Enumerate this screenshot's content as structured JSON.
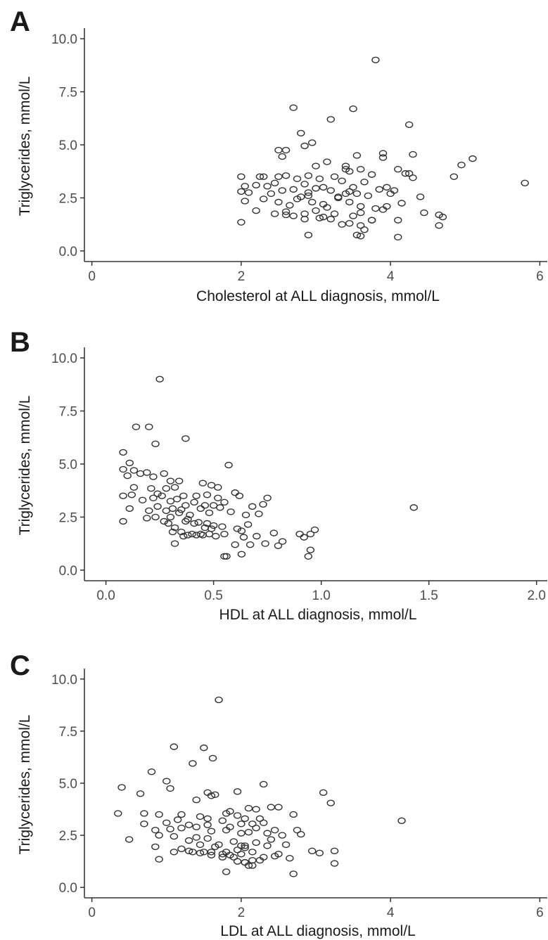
{
  "chart_data": [
    {
      "panel": "A",
      "type": "scatter",
      "xlabel": "Cholesterol at ALL diagnosis, mmol/L",
      "ylabel": "Triglycerides, mmol/L",
      "xlim": [
        -0.1,
        6.1
      ],
      "ylim": [
        -0.5,
        10.5
      ],
      "xticks": [
        0,
        2,
        4,
        6
      ],
      "xtick_labels": [
        "0",
        "2",
        "4",
        "6"
      ],
      "yticks": [
        0,
        2.5,
        5,
        7.5,
        10
      ],
      "ytick_labels": [
        "0.0",
        "2.5",
        "5.0",
        "7.5",
        "10.0"
      ],
      "grid": false,
      "marker": "open-circle",
      "x": [
        3.8,
        2.7,
        3.5,
        3.2,
        4.25,
        2.8,
        2.95,
        2.85,
        2.55,
        2.6,
        3.55,
        3.9,
        4.3,
        3.0,
        3.15,
        3.4,
        3.6,
        3.9,
        4.1,
        4.25,
        4.3,
        3.45,
        5.1,
        5.8,
        2.5,
        2.9,
        4.95,
        4.85,
        2.0,
        2.05,
        2.25,
        2.3,
        2.0,
        2.2,
        2.35,
        2.45,
        2.6,
        2.75,
        2.85,
        3.05,
        3.25,
        3.35,
        3.5,
        3.65,
        3.75,
        3.95,
        4.05,
        4.2,
        2.1,
        2.4,
        2.55,
        2.7,
        2.8,
        2.9,
        3.1,
        3.2,
        3.3,
        3.4,
        3.45,
        3.55,
        3.7,
        3.85,
        4.0,
        2.05,
        2.3,
        2.5,
        2.65,
        2.75,
        2.95,
        3.1,
        3.3,
        3.45,
        3.6,
        3.8,
        3.95,
        4.15,
        4.4,
        2.2,
        2.45,
        2.6,
        2.85,
        3.0,
        3.15,
        3.25,
        3.5,
        3.6,
        3.75,
        3.9,
        4.45,
        4.65,
        4.7,
        2.0,
        2.6,
        2.7,
        2.85,
        3.05,
        3.2,
        3.45,
        3.6,
        3.75,
        4.1,
        4.65,
        3.1,
        3.35,
        3.55,
        3.65,
        2.9,
        3.6,
        4.1,
        3.0,
        3.4,
        2.5,
        2.9
      ],
      "y": [
        9.0,
        6.75,
        6.7,
        6.2,
        5.95,
        5.55,
        5.1,
        4.95,
        4.45,
        4.75,
        4.5,
        4.6,
        4.55,
        4.0,
        4.2,
        4.0,
        3.85,
        4.4,
        3.85,
        3.65,
        3.45,
        3.75,
        4.35,
        3.2,
        3.5,
        3.55,
        4.05,
        3.5,
        3.5,
        3.05,
        3.5,
        3.5,
        2.8,
        3.1,
        3.05,
        3.2,
        3.55,
        3.4,
        3.15,
        3.4,
        3.5,
        3.3,
        3.0,
        3.25,
        3.6,
        3.0,
        2.85,
        3.65,
        2.75,
        2.7,
        2.85,
        2.9,
        2.55,
        2.6,
        3.0,
        2.85,
        2.55,
        2.7,
        2.8,
        2.7,
        2.6,
        2.9,
        2.7,
        2.35,
        2.45,
        2.3,
        2.15,
        2.45,
        2.3,
        2.2,
        2.5,
        2.3,
        2.1,
        2.0,
        2.1,
        2.25,
        2.55,
        1.9,
        1.75,
        1.85,
        1.75,
        1.9,
        2.05,
        1.75,
        1.65,
        1.8,
        1.45,
        1.95,
        1.8,
        1.7,
        1.6,
        1.35,
        1.7,
        1.65,
        1.5,
        1.55,
        1.5,
        1.3,
        1.2,
        1.45,
        1.45,
        1.2,
        1.6,
        1.25,
        0.75,
        1.0,
        0.75,
        0.7,
        0.65,
        2.95,
        3.85,
        4.75,
        2.75
      ],
      "x_axis_line_from": 0
    },
    {
      "panel": "B",
      "type": "scatter",
      "xlabel": "HDL at ALL diagnosis, mmol/L",
      "ylabel": "Triglycerides, mmol/L",
      "xlim": [
        -0.1,
        2.05
      ],
      "ylim": [
        -0.5,
        10.5
      ],
      "xticks": [
        0,
        0.5,
        1,
        1.5,
        2
      ],
      "xtick_labels": [
        "0.0",
        "0.5",
        "1.0",
        "1.5",
        "2.0"
      ],
      "yticks": [
        0,
        2.5,
        5,
        7.5,
        10
      ],
      "ytick_labels": [
        "0.0",
        "2.5",
        "5.0",
        "7.5",
        "10.0"
      ],
      "grid": false,
      "marker": "open-circle",
      "x": [
        0.25,
        0.14,
        0.2,
        0.37,
        0.23,
        0.08,
        0.57,
        0.11,
        0.08,
        0.16,
        0.13,
        0.1,
        0.19,
        0.27,
        0.22,
        0.3,
        0.34,
        0.45,
        0.49,
        0.52,
        0.13,
        0.21,
        0.24,
        0.28,
        0.32,
        0.36,
        0.42,
        0.47,
        0.52,
        0.6,
        0.75,
        1.43,
        0.08,
        0.12,
        0.17,
        0.22,
        0.26,
        0.3,
        0.33,
        0.37,
        0.41,
        0.46,
        0.5,
        0.55,
        0.62,
        0.68,
        0.73,
        0.2,
        0.24,
        0.28,
        0.31,
        0.35,
        0.39,
        0.44,
        0.48,
        0.53,
        0.58,
        0.65,
        0.71,
        0.3,
        0.34,
        0.38,
        0.43,
        0.47,
        0.5,
        0.08,
        0.11,
        0.19,
        0.23,
        0.27,
        0.32,
        0.37,
        0.41,
        0.46,
        0.54,
        0.66,
        0.29,
        0.35,
        0.44,
        0.49,
        0.55,
        0.63,
        0.31,
        0.36,
        0.4,
        0.45,
        0.51,
        0.61,
        0.38,
        0.42,
        0.48,
        0.64,
        0.7,
        0.78,
        0.9,
        0.95,
        0.97,
        0.67,
        0.74,
        0.8,
        0.82,
        0.32,
        0.6,
        0.56,
        0.63,
        0.55,
        0.95,
        0.94,
        0.92
      ],
      "y": [
        9.0,
        6.75,
        6.75,
        6.2,
        5.95,
        5.55,
        4.95,
        5.05,
        4.75,
        4.55,
        4.7,
        4.45,
        4.6,
        4.55,
        4.4,
        4.2,
        4.2,
        4.1,
        4.0,
        3.9,
        3.9,
        3.85,
        3.6,
        3.85,
        3.9,
        3.5,
        3.5,
        3.55,
        3.4,
        3.65,
        3.4,
        2.95,
        3.5,
        3.55,
        3.3,
        3.4,
        3.5,
        3.25,
        3.35,
        3.05,
        3.2,
        3.05,
        3.05,
        3.2,
        3.5,
        3.0,
        3.1,
        2.8,
        3.0,
        2.8,
        2.9,
        2.85,
        2.6,
        2.9,
        2.7,
        2.95,
        2.75,
        2.6,
        2.65,
        2.5,
        2.7,
        2.4,
        2.25,
        2.2,
        2.1,
        2.3,
        2.9,
        2.45,
        2.5,
        2.3,
        2.0,
        2.3,
        2.2,
        2.0,
        2.05,
        2.15,
        2.2,
        1.8,
        1.7,
        1.95,
        1.7,
        1.85,
        1.8,
        1.6,
        1.7,
        1.65,
        1.6,
        1.95,
        1.65,
        1.65,
        1.7,
        1.55,
        1.6,
        1.75,
        1.7,
        1.7,
        1.9,
        1.2,
        1.25,
        1.15,
        1.35,
        1.25,
        1.2,
        0.65,
        0.75,
        0.65,
        0.95,
        0.65,
        1.55
      ],
      "x_axis_line_from": 0
    },
    {
      "panel": "C",
      "type": "scatter",
      "xlabel": "LDL at ALL diagnosis, mmol/L",
      "ylabel": "Triglycerides, mmol/L",
      "xlim": [
        -0.1,
        6.1
      ],
      "ylim": [
        -0.5,
        10.5
      ],
      "xticks": [
        0,
        2,
        4,
        6
      ],
      "xtick_labels": [
        "0",
        "2",
        "4",
        "6"
      ],
      "yticks": [
        0,
        2.5,
        5,
        7.5,
        10
      ],
      "ytick_labels": [
        "0.0",
        "2.5",
        "5.0",
        "7.5",
        "10.0"
      ],
      "grid": false,
      "marker": "open-circle",
      "x": [
        1.7,
        1.1,
        1.5,
        1.35,
        1.62,
        0.8,
        2.3,
        1.0,
        0.4,
        1.05,
        0.65,
        1.55,
        1.6,
        1.95,
        3.1,
        3.2,
        4.15,
        1.4,
        1.65,
        2.5,
        2.2,
        2.1,
        1.85,
        0.35,
        0.7,
        0.9,
        1.15,
        1.2,
        1.45,
        1.55,
        1.8,
        1.95,
        2.05,
        2.25,
        2.4,
        2.7,
        0.7,
        1.0,
        1.3,
        1.55,
        1.75,
        1.85,
        2.0,
        2.15,
        2.3,
        2.45,
        0.5,
        0.9,
        1.05,
        1.2,
        1.4,
        1.6,
        1.8,
        2.0,
        2.1,
        2.2,
        2.35,
        2.55,
        2.75,
        0.85,
        1.1,
        1.4,
        1.55,
        1.7,
        1.9,
        2.0,
        2.2,
        2.4,
        2.6,
        2.8,
        1.2,
        1.35,
        1.5,
        1.65,
        1.8,
        1.95,
        2.05,
        2.15,
        2.3,
        1.1,
        1.45,
        1.6,
        1.75,
        1.9,
        2.0,
        2.25,
        2.5,
        3.05,
        3.25,
        2.95,
        1.45,
        1.6,
        1.85,
        2.05,
        2.15,
        2.65,
        0.9,
        1.3,
        1.75,
        1.95,
        2.05,
        2.15,
        2.45,
        1.8,
        2.1,
        3.25,
        2.7,
        2.05,
        2.35,
        1.3,
        0.85
      ],
      "y": [
        9.0,
        6.75,
        6.7,
        5.95,
        6.2,
        5.55,
        4.95,
        5.1,
        4.8,
        4.75,
        4.5,
        4.55,
        4.4,
        4.6,
        4.55,
        4.05,
        3.2,
        4.2,
        4.45,
        3.85,
        3.75,
        3.8,
        3.65,
        3.55,
        3.55,
        3.5,
        3.25,
        3.5,
        3.4,
        3.3,
        3.55,
        3.45,
        3.3,
        3.3,
        3.85,
        3.5,
        3.05,
        3.1,
        3.0,
        3.0,
        3.2,
        2.9,
        3.05,
        3.05,
        3.1,
        2.75,
        2.3,
        2.5,
        2.8,
        2.85,
        2.9,
        2.7,
        2.75,
        2.6,
        2.65,
        2.85,
        2.6,
        2.5,
        2.75,
        2.75,
        2.45,
        2.4,
        2.35,
        2.05,
        2.2,
        2.0,
        2.15,
        2.3,
        2.05,
        2.55,
        1.85,
        1.7,
        1.7,
        1.95,
        1.7,
        1.8,
        1.9,
        1.7,
        1.45,
        1.7,
        1.65,
        1.55,
        1.6,
        1.45,
        1.6,
        1.3,
        1.6,
        1.65,
        1.75,
        1.75,
        2.05,
        1.7,
        1.55,
        1.2,
        1.05,
        1.4,
        1.35,
        1.75,
        1.45,
        1.25,
        1.2,
        1.3,
        1.5,
        0.75,
        1.05,
        1.15,
        0.65,
        2.0,
        2.0,
        2.25,
        1.95
      ],
      "x_axis_line_from": 0
    }
  ]
}
